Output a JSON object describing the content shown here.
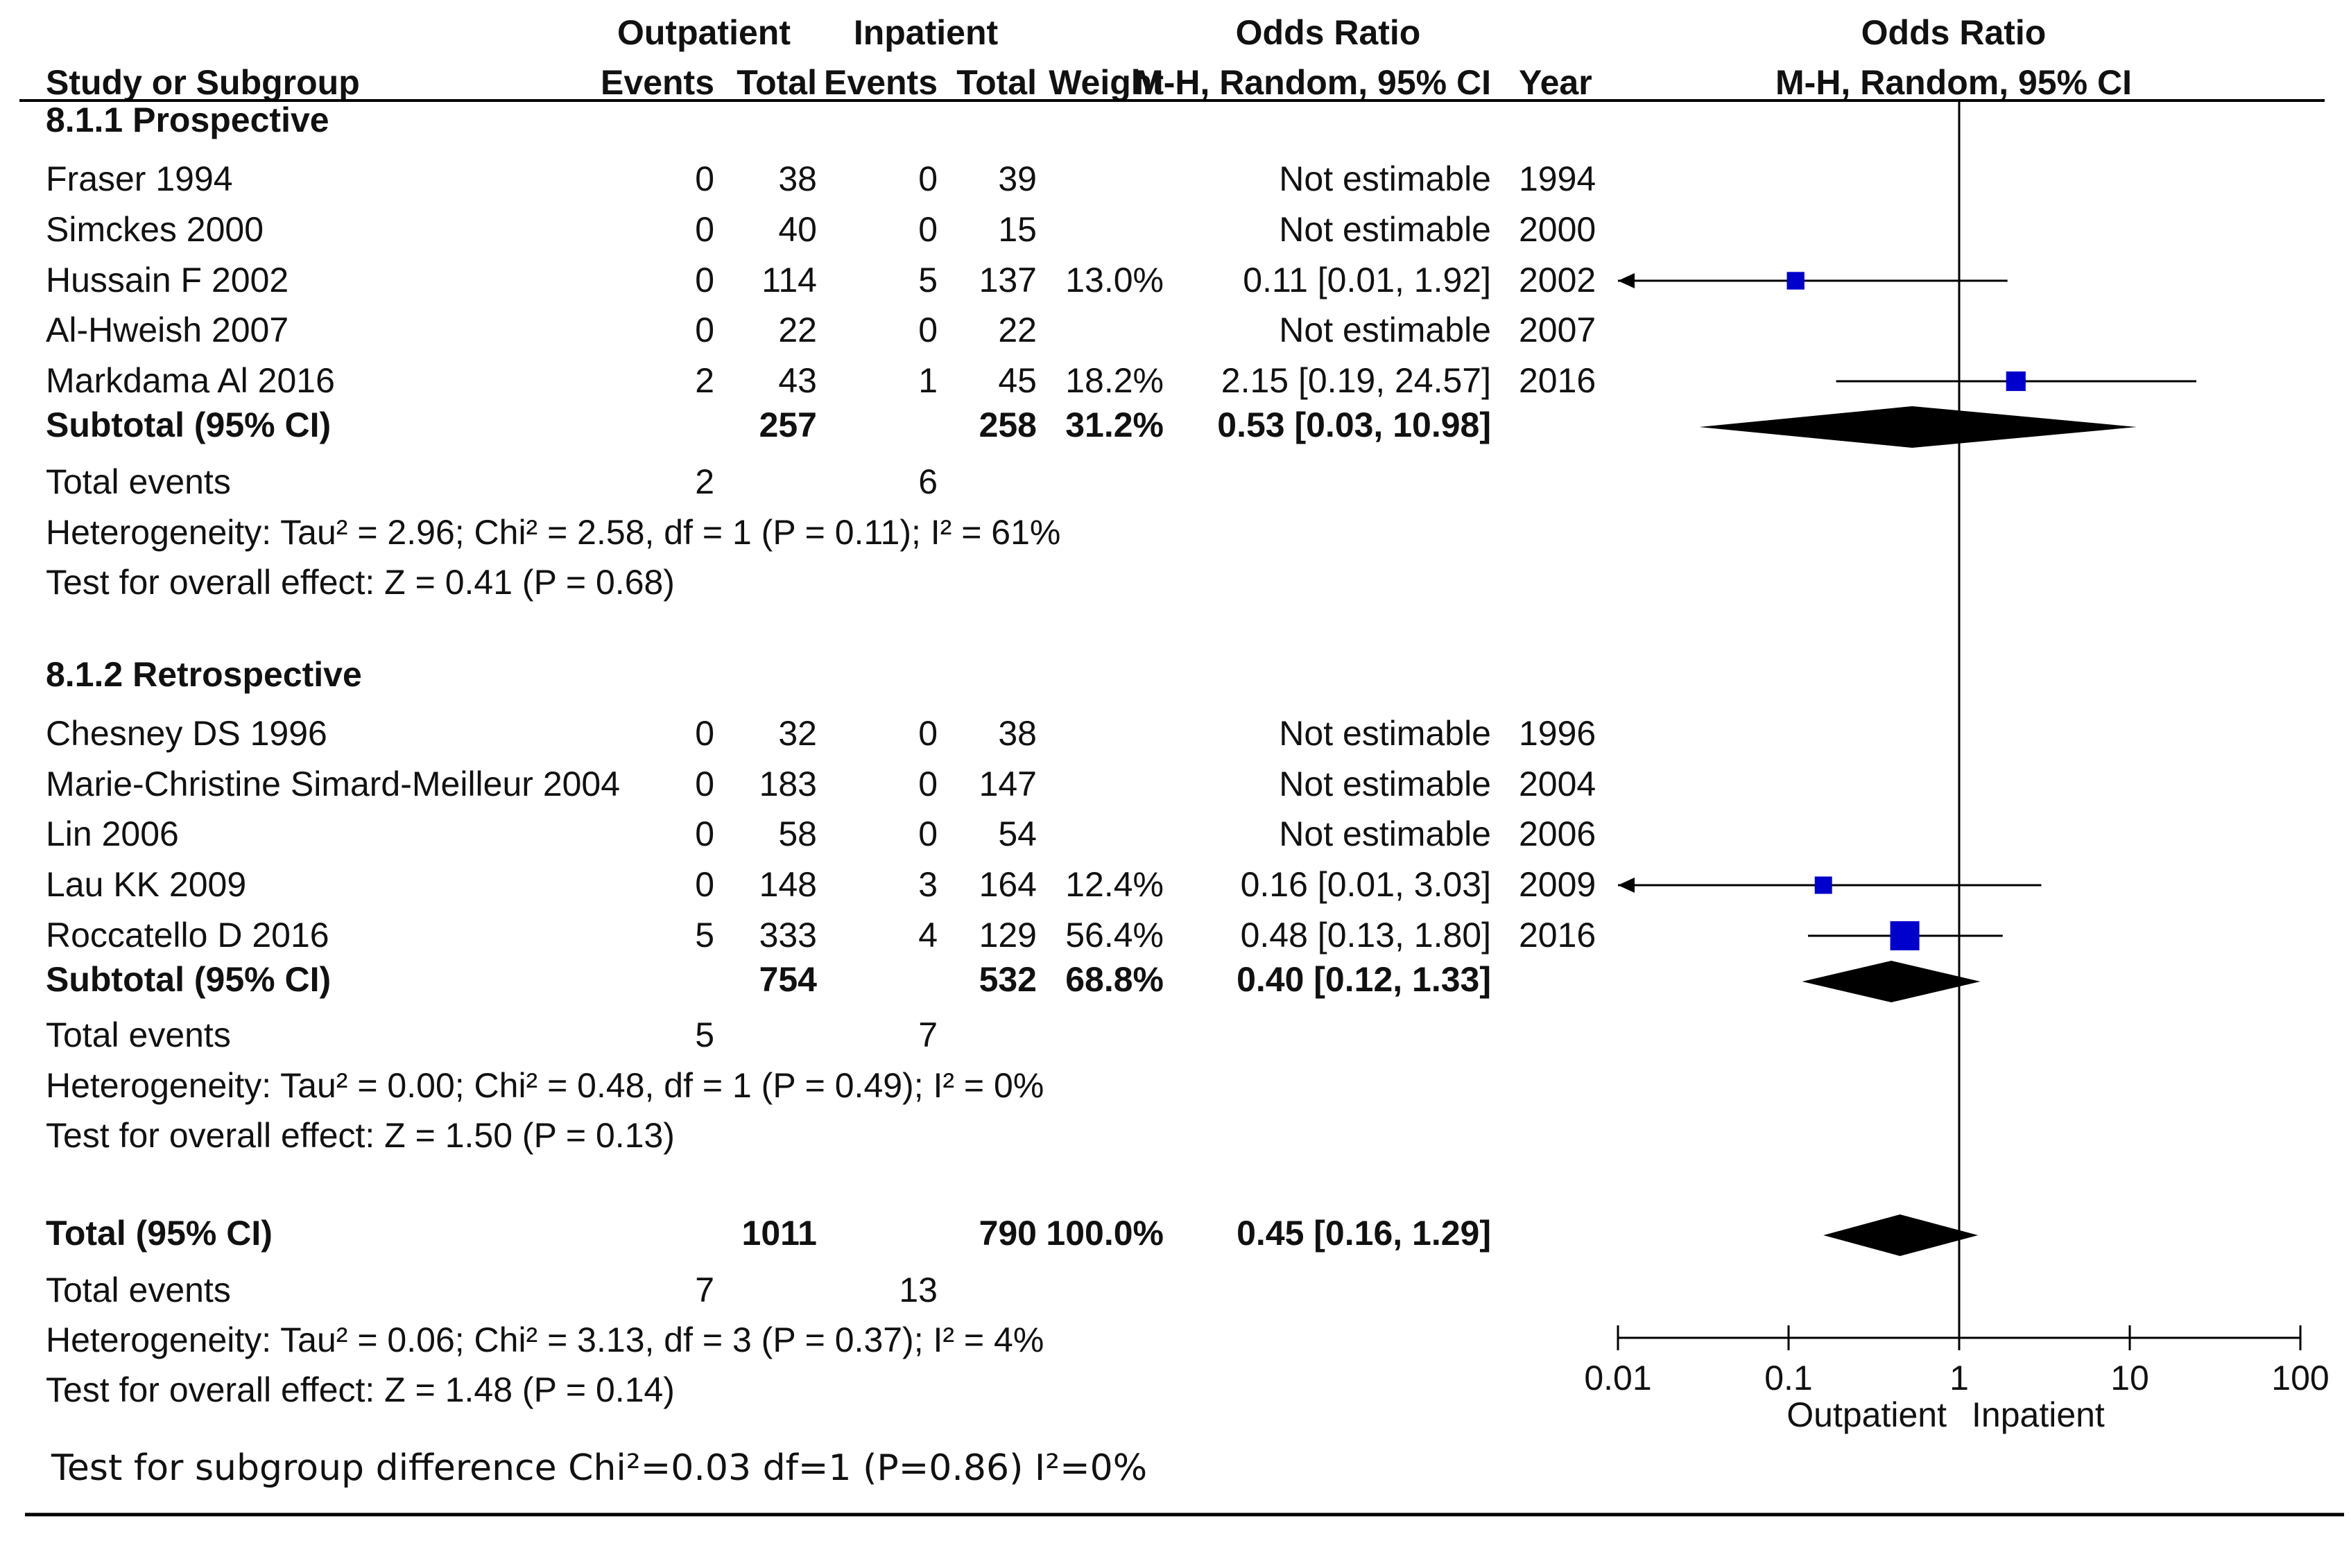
{
  "header": {
    "group1": "Outpatient",
    "group2": "Inpatient",
    "or_title": "Odds Ratio",
    "study_col": "Study or Subgroup",
    "events": "Events",
    "total": "Total",
    "weight": "Weight",
    "or_method": "M-H, Random, 95% CI",
    "year": "Year",
    "plot_title": "Odds Ratio",
    "plot_method": "M-H, Random, 95% CI"
  },
  "subgroups": [
    {
      "title": "8.1.1 Prospective",
      "studies": [
        {
          "name": "Fraser 1994",
          "e1": "0",
          "t1": "38",
          "e2": "0",
          "t2": "39",
          "weight": "",
          "ci_text": "Not estimable",
          "year": "1994",
          "or": null,
          "lo": null,
          "hi": null,
          "w": null
        },
        {
          "name": "Simckes 2000",
          "e1": "0",
          "t1": "40",
          "e2": "0",
          "t2": "15",
          "weight": "",
          "ci_text": "Not estimable",
          "year": "2000",
          "or": null,
          "lo": null,
          "hi": null,
          "w": null
        },
        {
          "name": "Hussain F  2002",
          "e1": "0",
          "t1": "114",
          "e2": "5",
          "t2": "137",
          "weight": "13.0%",
          "ci_text": "0.11 [0.01, 1.92]",
          "year": "2002",
          "or": 0.11,
          "lo": 0.01,
          "hi": 1.92,
          "w": 13.0
        },
        {
          "name": "Al-Hweish 2007",
          "e1": "0",
          "t1": "22",
          "e2": "0",
          "t2": "22",
          "weight": "",
          "ci_text": "Not estimable",
          "year": "2007",
          "or": null,
          "lo": null,
          "hi": null,
          "w": null
        },
        {
          "name": "Markdama Al 2016",
          "e1": "2",
          "t1": "43",
          "e2": "1",
          "t2": "45",
          "weight": "18.2%",
          "ci_text": "2.15 [0.19, 24.57]",
          "year": "2016",
          "or": 2.15,
          "lo": 0.19,
          "hi": 24.57,
          "w": 18.2
        }
      ],
      "subtotal": {
        "label": "Subtotal (95% CI)",
        "t1": "257",
        "t2": "258",
        "weight": "31.2%",
        "ci_text": "0.53 [0.03, 10.98]",
        "or": 0.53,
        "lo": 0.03,
        "hi": 10.98
      },
      "total_events": {
        "label": "Total events",
        "e1": "2",
        "e2": "6"
      },
      "heterogeneity": "Heterogeneity: Tau² = 2.96; Chi² = 2.58, df = 1 (P = 0.11); I² = 61%",
      "overall": "Test for overall effect: Z = 0.41 (P = 0.68)"
    },
    {
      "title": "8.1.2 Retrospective",
      "studies": [
        {
          "name": "Chesney DS 1996",
          "e1": "0",
          "t1": "32",
          "e2": "0",
          "t2": "38",
          "weight": "",
          "ci_text": "Not estimable",
          "year": "1996",
          "or": null,
          "lo": null,
          "hi": null,
          "w": null
        },
        {
          "name": "Marie-Christine Simard-Meilleur 2004",
          "e1": "0",
          "t1": "183",
          "e2": "0",
          "t2": "147",
          "weight": "",
          "ci_text": "Not estimable",
          "year": "2004",
          "or": null,
          "lo": null,
          "hi": null,
          "w": null
        },
        {
          "name": "Lin 2006",
          "e1": "0",
          "t1": "58",
          "e2": "0",
          "t2": "54",
          "weight": "",
          "ci_text": "Not estimable",
          "year": "2006",
          "or": null,
          "lo": null,
          "hi": null,
          "w": null
        },
        {
          "name": "Lau KK 2009",
          "e1": "0",
          "t1": "148",
          "e2": "3",
          "t2": "164",
          "weight": "12.4%",
          "ci_text": "0.16 [0.01, 3.03]",
          "year": "2009",
          "or": 0.16,
          "lo": 0.01,
          "hi": 3.03,
          "w": 12.4
        },
        {
          "name": "Roccatello D 2016",
          "e1": "5",
          "t1": "333",
          "e2": "4",
          "t2": "129",
          "weight": "56.4%",
          "ci_text": "0.48 [0.13, 1.80]",
          "year": "2016",
          "or": 0.48,
          "lo": 0.13,
          "hi": 1.8,
          "w": 56.4
        }
      ],
      "subtotal": {
        "label": "Subtotal (95% CI)",
        "t1": "754",
        "t2": "532",
        "weight": "68.8%",
        "ci_text": "0.40 [0.12, 1.33]",
        "or": 0.4,
        "lo": 0.12,
        "hi": 1.33
      },
      "total_events": {
        "label": "Total events",
        "e1": "5",
        "e2": "7"
      },
      "heterogeneity": "Heterogeneity: Tau² = 0.00; Chi² = 0.48, df = 1 (P = 0.49); I² = 0%",
      "overall": "Test for overall effect: Z = 1.50 (P = 0.13)"
    }
  ],
  "total": {
    "label": "Total (95% CI)",
    "t1": "1011",
    "t2": "790",
    "weight": "100.0%",
    "ci_text": "0.45 [0.16, 1.29]",
    "or": 0.45,
    "lo": 0.16,
    "hi": 1.29,
    "total_events": {
      "label": "Total events",
      "e1": "7",
      "e2": "13"
    },
    "heterogeneity": "Heterogeneity: Tau² = 0.06; Chi² = 3.13, df = 3 (P = 0.37); I² = 4%",
    "overall": "Test for overall effect: Z = 1.48 (P = 0.14)"
  },
  "subgroup_test": "Test for subgroup difference Chi²=0.03 df=1 (P=0.86) I²=0%",
  "colors": {
    "study_square": "#0000cc",
    "diamond": "#000000",
    "line": "#000000",
    "text": "#111111"
  },
  "chart_data": {
    "type": "forest",
    "x_scale": "log",
    "xlim": [
      0.01,
      100
    ],
    "ticks": [
      0.01,
      0.1,
      1,
      10,
      100
    ],
    "tick_labels": [
      "0.01",
      "0.1",
      "1",
      "10",
      "100"
    ],
    "reference_line": 1,
    "favours_left": "Outpatient",
    "favours_right": "Inpatient",
    "title": "Odds Ratio",
    "method": "M-H, Random, 95% CI"
  }
}
